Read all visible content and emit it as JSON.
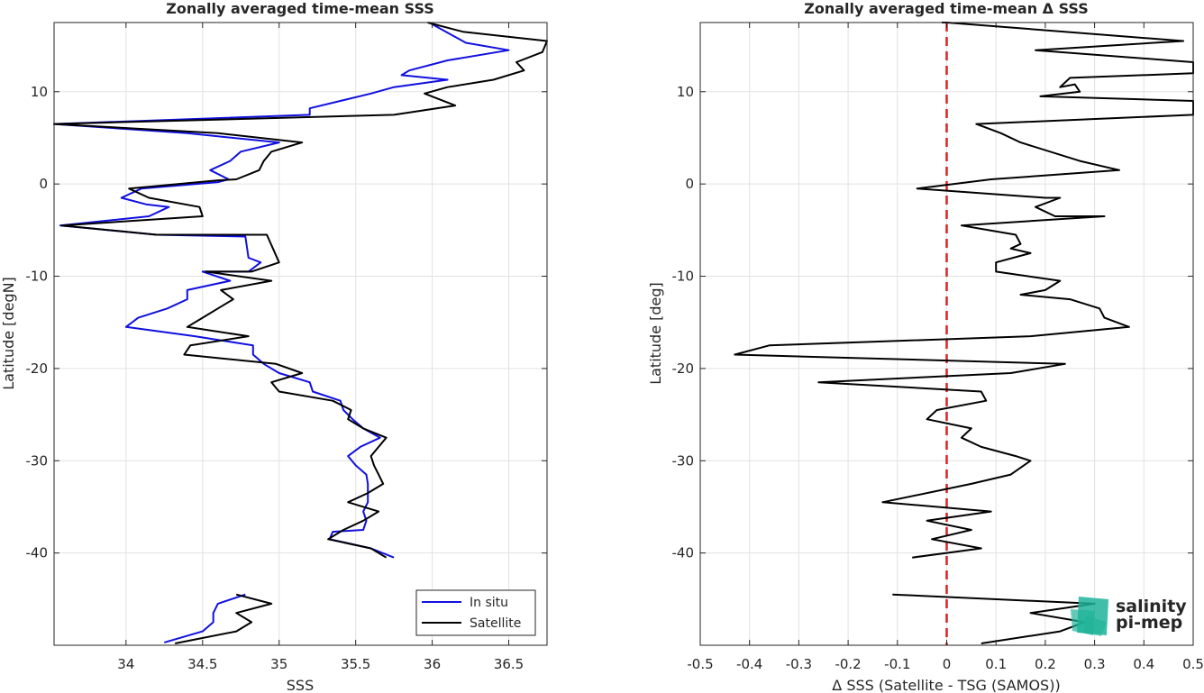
{
  "colors": {
    "in_situ": "#1010e0",
    "satellite": "#000000",
    "zero_line": "#e02020",
    "logo_top": "#1fb39a",
    "logo_bottom": "#1a6b5e"
  },
  "logo": {
    "line1": "salinity",
    "line2": "pi-mep"
  },
  "chart_data": [
    {
      "type": "line",
      "title": "Zonally averaged time-mean SSS",
      "xlabel": "SSS",
      "ylabel": "Latitude [degN]",
      "xlim": [
        33.53,
        36.75
      ],
      "ylim": [
        -50,
        17.5
      ],
      "xticks": [
        34,
        34.5,
        35,
        35.5,
        36,
        36.5
      ],
      "yticks": [
        -40,
        -30,
        -20,
        -10,
        0,
        10
      ],
      "grid": true,
      "legend": {
        "placement": "bottom-right",
        "entries": [
          "In situ",
          "Satellite"
        ]
      },
      "series": [
        {
          "name": "In situ",
          "segments": [
            [
              [
                35.98,
                17.5
              ],
              [
                36.22,
                15.3
              ],
              [
                36.5,
                14.5
              ],
              [
                36.1,
                13.4
              ],
              [
                35.85,
                12.3
              ],
              [
                35.8,
                11.8
              ],
              [
                36.1,
                11.3
              ],
              [
                35.75,
                10.5
              ],
              [
                35.6,
                9.8
              ],
              [
                35.2,
                8.2
              ],
              [
                35.2,
                7.5
              ],
              [
                33.53,
                6.5
              ],
              [
                34.4,
                5.5
              ],
              [
                35.0,
                4.5
              ],
              [
                34.75,
                3.5
              ],
              [
                34.68,
                2.5
              ],
              [
                34.55,
                1.5
              ],
              [
                34.67,
                0.5
              ],
              [
                34.6,
                0.2
              ],
              [
                34.1,
                -0.5
              ],
              [
                33.97,
                -1.5
              ],
              [
                34.13,
                -2.2
              ],
              [
                34.28,
                -2.5
              ],
              [
                34.15,
                -3.5
              ],
              [
                33.57,
                -4.5
              ],
              [
                34.2,
                -5.5
              ],
              [
                34.78,
                -5.7
              ],
              [
                34.8,
                -8.0
              ],
              [
                34.88,
                -8.5
              ],
              [
                34.8,
                -9.5
              ],
              [
                34.5,
                -9.5
              ],
              [
                34.68,
                -10.5
              ],
              [
                34.4,
                -11.5
              ],
              [
                34.4,
                -12.5
              ],
              [
                34.27,
                -13.5
              ],
              [
                34.08,
                -14.5
              ],
              [
                34.0,
                -15.5
              ],
              [
                34.45,
                -16.5
              ],
              [
                34.83,
                -17.5
              ],
              [
                34.83,
                -18.5
              ],
              [
                34.9,
                -19.5
              ],
              [
                35.0,
                -20.5
              ],
              [
                35.2,
                -21.5
              ],
              [
                35.22,
                -22.5
              ],
              [
                35.4,
                -23.5
              ],
              [
                35.42,
                -24.5
              ],
              [
                35.48,
                -25.5
              ],
              [
                35.55,
                -26.5
              ],
              [
                35.66,
                -27.5
              ],
              [
                35.53,
                -28.5
              ],
              [
                35.45,
                -29.5
              ],
              [
                35.5,
                -30.5
              ],
              [
                35.57,
                -31.5
              ],
              [
                35.58,
                -32.5
              ],
              [
                35.58,
                -33.5
              ],
              [
                35.58,
                -34.5
              ],
              [
                35.55,
                -35.5
              ],
              [
                35.57,
                -36.5
              ],
              [
                35.55,
                -37.5
              ],
              [
                35.35,
                -37.7
              ],
              [
                35.33,
                -38.5
              ],
              [
                35.6,
                -39.5
              ],
              [
                35.75,
                -40.5
              ]
            ],
            [
              [
                34.78,
                -44.5
              ],
              [
                34.6,
                -45.5
              ],
              [
                34.57,
                -46.5
              ],
              [
                34.57,
                -47.5
              ],
              [
                34.5,
                -48.5
              ],
              [
                34.25,
                -49.7
              ]
            ]
          ]
        },
        {
          "name": "Satellite",
          "segments": [
            [
              [
                35.97,
                17.5
              ],
              [
                36.2,
                16.5
              ],
              [
                36.75,
                15.5
              ],
              [
                36.72,
                14.3
              ],
              [
                36.55,
                13.2
              ],
              [
                36.6,
                12.3
              ],
              [
                36.4,
                11.3
              ],
              [
                36.1,
                10.5
              ],
              [
                35.95,
                9.8
              ],
              [
                36.15,
                8.5
              ],
              [
                35.75,
                7.5
              ],
              [
                33.53,
                6.5
              ],
              [
                34.6,
                5.5
              ],
              [
                35.15,
                4.5
              ],
              [
                34.95,
                3.5
              ],
              [
                34.9,
                2.5
              ],
              [
                34.87,
                1.5
              ],
              [
                34.72,
                0.5
              ],
              [
                34.6,
                0.4
              ],
              [
                34.02,
                -0.5
              ],
              [
                34.15,
                -1.5
              ],
              [
                34.48,
                -2.5
              ],
              [
                34.5,
                -3.5
              ],
              [
                33.58,
                -4.5
              ],
              [
                34.2,
                -5.5
              ],
              [
                34.92,
                -5.5
              ],
              [
                35.0,
                -8.5
              ],
              [
                34.82,
                -9.5
              ],
              [
                34.52,
                -9.5
              ],
              [
                34.95,
                -10.5
              ],
              [
                34.62,
                -11.5
              ],
              [
                34.7,
                -12.5
              ],
              [
                34.6,
                -13.5
              ],
              [
                34.5,
                -14.5
              ],
              [
                34.4,
                -15.5
              ],
              [
                34.8,
                -16.5
              ],
              [
                34.42,
                -17.5
              ],
              [
                34.38,
                -18.5
              ],
              [
                34.98,
                -19.5
              ],
              [
                35.15,
                -20.5
              ],
              [
                34.95,
                -21.5
              ],
              [
                35.0,
                -22.5
              ],
              [
                35.35,
                -23.5
              ],
              [
                35.47,
                -24.5
              ],
              [
                35.45,
                -25.5
              ],
              [
                35.55,
                -26.5
              ],
              [
                35.7,
                -27.5
              ],
              [
                35.65,
                -28.5
              ],
              [
                35.6,
                -29.5
              ],
              [
                35.62,
                -30.5
              ],
              [
                35.65,
                -31.5
              ],
              [
                35.68,
                -32.5
              ],
              [
                35.58,
                -33.5
              ],
              [
                35.45,
                -34.5
              ],
              [
                35.65,
                -35.5
              ],
              [
                35.55,
                -36.5
              ],
              [
                35.42,
                -37.5
              ],
              [
                35.32,
                -38.5
              ],
              [
                35.6,
                -39.5
              ],
              [
                35.7,
                -40.5
              ]
            ],
            [
              [
                34.72,
                -44.5
              ],
              [
                34.95,
                -45.5
              ],
              [
                34.72,
                -46.5
              ],
              [
                34.82,
                -47.5
              ],
              [
                34.72,
                -48.5
              ],
              [
                34.32,
                -49.8
              ]
            ]
          ]
        }
      ]
    },
    {
      "type": "line",
      "title": "Zonally averaged time-mean Δ SSS",
      "xlabel": "Δ SSS (Satellite - TSG (SAMOS))",
      "ylabel": "Latitude [deg]",
      "xlim": [
        -0.5,
        0.5
      ],
      "ylim": [
        -50,
        17.5
      ],
      "xticks": [
        -0.5,
        -0.4,
        -0.3,
        -0.2,
        -0.1,
        0,
        0.1,
        0.2,
        0.3,
        0.4,
        0.5
      ],
      "yticks": [
        -40,
        -30,
        -20,
        -10,
        0,
        10
      ],
      "grid": true,
      "reference_line_x": 0,
      "series": [
        {
          "name": "",
          "segments": [
            [
              [
                -0.01,
                17.5
              ],
              [
                0.0,
                17.5
              ],
              [
                0.48,
                15.5
              ],
              [
                0.18,
                14.5
              ],
              [
                0.5,
                13.2
              ],
              [
                0.5,
                12.0
              ],
              [
                0.25,
                11.5
              ],
              [
                0.23,
                10.5
              ],
              [
                0.26,
                10.8
              ],
              [
                0.27,
                10.0
              ],
              [
                0.19,
                9.5
              ],
              [
                0.5,
                9.0
              ],
              [
                0.5,
                7.5
              ],
              [
                0.06,
                6.5
              ],
              [
                0.11,
                5.5
              ],
              [
                0.15,
                4.5
              ],
              [
                0.27,
                2.5
              ],
              [
                0.35,
                1.5
              ],
              [
                0.09,
                0.5
              ],
              [
                -0.06,
                -0.5
              ],
              [
                0.2,
                -1.5
              ],
              [
                0.23,
                -1.5
              ],
              [
                0.18,
                -2.5
              ],
              [
                0.22,
                -3.5
              ],
              [
                0.32,
                -3.5
              ],
              [
                0.03,
                -4.5
              ],
              [
                0.14,
                -5.5
              ],
              [
                0.15,
                -6.5
              ],
              [
                0.13,
                -7.0
              ],
              [
                0.17,
                -7.5
              ],
              [
                0.1,
                -8.5
              ],
              [
                0.1,
                -9.5
              ],
              [
                0.23,
                -10.5
              ],
              [
                0.2,
                -11.5
              ],
              [
                0.15,
                -12.0
              ],
              [
                0.25,
                -12.5
              ],
              [
                0.31,
                -13.5
              ],
              [
                0.32,
                -14.5
              ],
              [
                0.37,
                -15.5
              ],
              [
                0.17,
                -16.5
              ],
              [
                -0.36,
                -17.5
              ],
              [
                -0.43,
                -18.5
              ],
              [
                0.24,
                -19.5
              ],
              [
                0.13,
                -20.5
              ],
              [
                -0.26,
                -21.5
              ],
              [
                0.07,
                -22.5
              ],
              [
                0.08,
                -23.5
              ],
              [
                -0.02,
                -24.5
              ],
              [
                -0.04,
                -25.5
              ],
              [
                0.05,
                -26.5
              ],
              [
                0.03,
                -27.5
              ],
              [
                0.07,
                -28.5
              ],
              [
                0.14,
                -29.5
              ],
              [
                0.17,
                -30.0
              ],
              [
                0.13,
                -31.5
              ],
              [
                0.05,
                -32.5
              ],
              [
                -0.13,
                -34.5
              ],
              [
                0.09,
                -35.5
              ],
              [
                -0.04,
                -36.5
              ],
              [
                0.05,
                -37.5
              ],
              [
                -0.03,
                -38.5
              ],
              [
                0.07,
                -39.5
              ],
              [
                -0.07,
                -40.5
              ]
            ],
            [
              [
                -0.11,
                -44.5
              ],
              [
                0.3,
                -45.5
              ],
              [
                0.17,
                -46.5
              ],
              [
                0.28,
                -47.5
              ],
              [
                0.23,
                -48.5
              ],
              [
                0.07,
                -49.8
              ]
            ]
          ]
        }
      ]
    }
  ]
}
